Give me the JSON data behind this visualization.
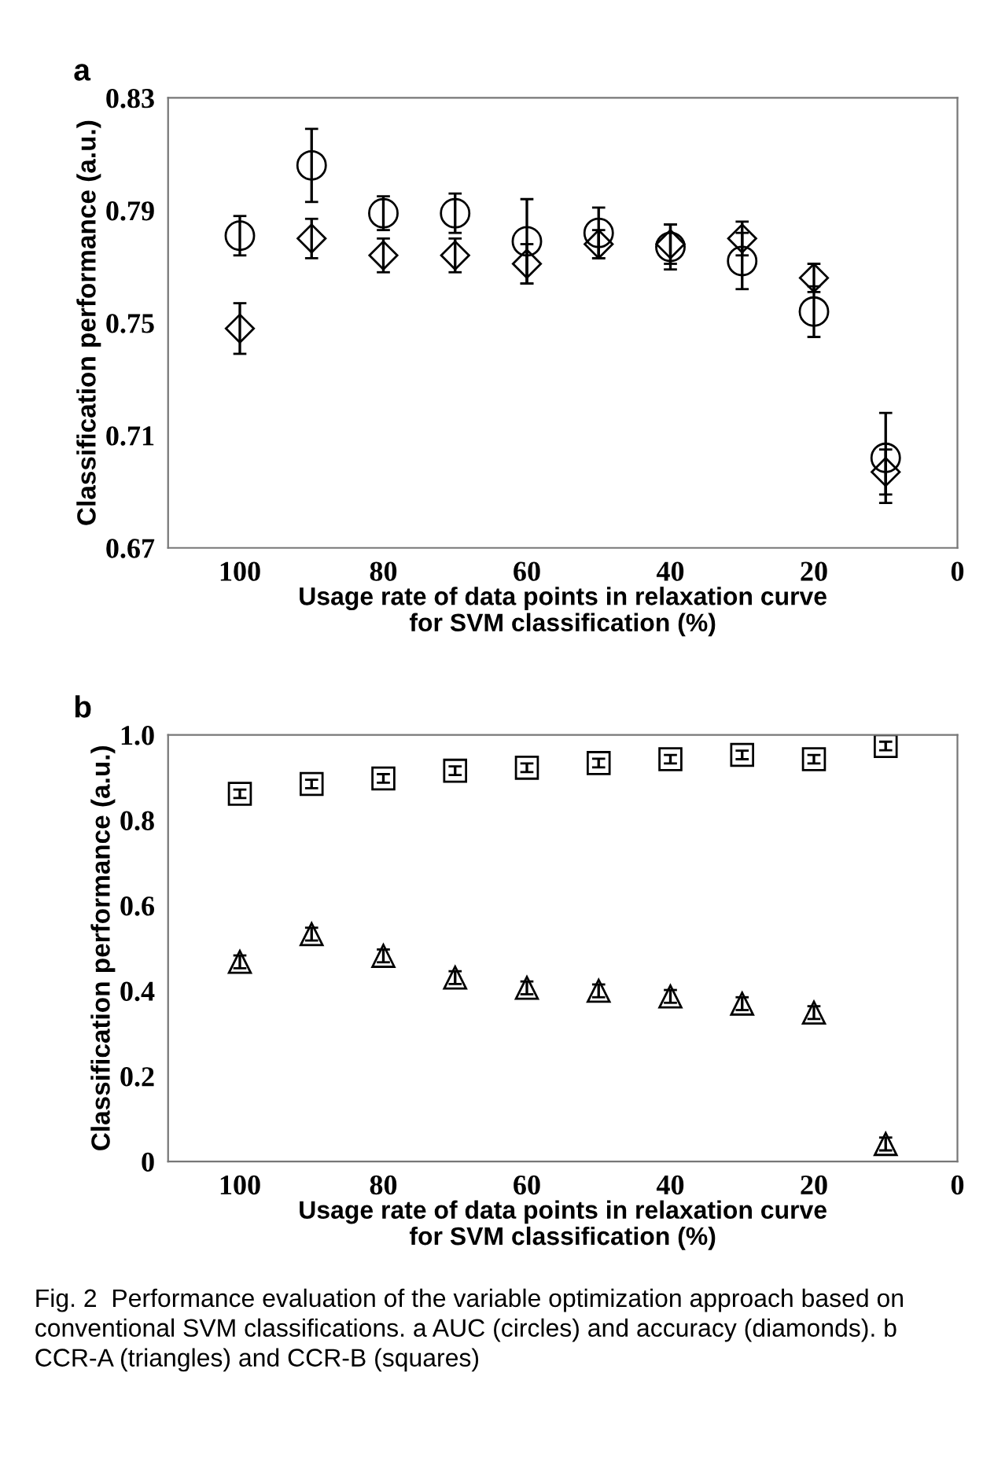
{
  "chart_data": [
    {
      "type": "scatter",
      "title": "a",
      "ylabel": "Classification performance (a.u.)",
      "xlabel": "Usage rate of data points in relaxation curve\nfor SVM classification (%)",
      "x": [
        100,
        90,
        80,
        70,
        60,
        50,
        40,
        30,
        20,
        10
      ],
      "xlim": [
        110,
        0
      ],
      "xticks": [
        100,
        80,
        60,
        40,
        20,
        0
      ],
      "ylim": [
        0.67,
        0.83
      ],
      "yticks": [
        0.67,
        0.71,
        0.75,
        0.79,
        0.83
      ],
      "grid": false,
      "series": [
        {
          "color": "#000000",
          "marker": "circle",
          "values": [
            0.781,
            0.806,
            0.789,
            0.789,
            0.779,
            0.782,
            0.777,
            0.772,
            0.754,
            0.702
          ],
          "errors": [
            0.007,
            0.013,
            0.006,
            0.007,
            0.015,
            0.009,
            0.008,
            0.01,
            0.009,
            0.016
          ]
        },
        {
          "color": "#000000",
          "marker": "diamond",
          "values": [
            0.748,
            0.78,
            0.774,
            0.774,
            0.771,
            0.778,
            0.778,
            0.78,
            0.766,
            0.697
          ],
          "errors": [
            0.009,
            0.007,
            0.006,
            0.006,
            0.007,
            0.005,
            0.007,
            0.006,
            0.005,
            0.008
          ]
        }
      ]
    },
    {
      "type": "scatter",
      "title": "b",
      "ylabel": "Classification performance (a.u.)",
      "xlabel": "Usage rate of data points in relaxation curve\nfor SVM classification (%)",
      "x": [
        100,
        90,
        80,
        70,
        60,
        50,
        40,
        30,
        20,
        10
      ],
      "xlim": [
        110,
        0
      ],
      "xticks": [
        100,
        80,
        60,
        40,
        20,
        0
      ],
      "ylim": [
        0,
        1.0
      ],
      "yticks": [
        0,
        0.2,
        0.4,
        0.6,
        0.8,
        {
          "value": 1.0,
          "label": "1.0"
        }
      ],
      "grid": false,
      "series": [
        {
          "color": "#000000",
          "marker": "square",
          "values": [
            0.862,
            0.885,
            0.898,
            0.916,
            0.923,
            0.934,
            0.943,
            0.953,
            0.943,
            0.974
          ],
          "errors": [
            0.01,
            0.01,
            0.01,
            0.01,
            0.01,
            0.01,
            0.01,
            0.01,
            0.01,
            0.01
          ]
        },
        {
          "color": "#000000",
          "marker": "triangle",
          "values": [
            0.468,
            0.533,
            0.482,
            0.431,
            0.407,
            0.4,
            0.387,
            0.37,
            0.349,
            0.041
          ],
          "errors": [
            0.015,
            0.015,
            0.015,
            0.015,
            0.015,
            0.015,
            0.015,
            0.015,
            0.015,
            0.015
          ]
        }
      ],
      "annotations": [
        "Fig. 2  Performance evaluation of the variable optimization approach based on conventional SVM classifications. a AUC (circles) and accuracy (diamonds). b CCR-A (triangles) and CCR-B (squares)"
      ]
    }
  ]
}
